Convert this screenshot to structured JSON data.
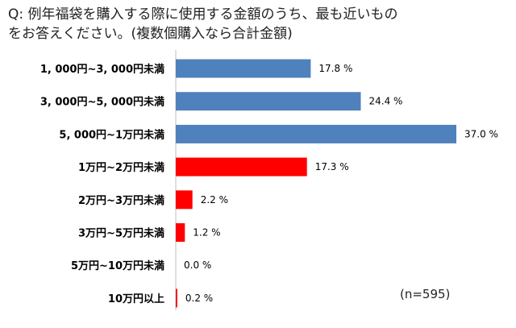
{
  "title_line1": "Q: 例年福袋を購入する際に使用する金額のうち、最も近いもの",
  "title_line2": "をお答えください。(複数個購入なら合計金額)",
  "note": "(n=595)",
  "colors": {
    "blue": "#4f81bd",
    "red": "#ff0000",
    "axis": "#bfbfbf"
  },
  "chart_data": {
    "type": "bar",
    "orientation": "horizontal",
    "title": "Q: 例年福袋を購入する際に使用する金額のうち、最も近いものをお答えください。(複数個購入なら合計金額)",
    "categories": [
      "1, 000円~3, 000円未満",
      "3, 000円~5, 000円未満",
      "5, 000円~1万円未満",
      "1万円~2万円未満",
      "2万円~3万円未満",
      "3万円~5万円未満",
      "5万円~10万円未満",
      "10万円以上"
    ],
    "values": [
      17.8,
      24.4,
      37.0,
      17.3,
      2.2,
      1.2,
      0.0,
      0.2
    ],
    "value_labels": [
      "17.8 %",
      "24.4 %",
      "37.0 %",
      "17.3 %",
      "2.2 %",
      "1.2 %",
      "0.0 %",
      "0.2 %"
    ],
    "bar_colors": [
      "#4f81bd",
      "#4f81bd",
      "#4f81bd",
      "#ff0000",
      "#ff0000",
      "#ff0000",
      "#ff0000",
      "#ff0000"
    ],
    "xlim": [
      0,
      37.0
    ],
    "unit": "%",
    "grid": false,
    "legend": "none"
  }
}
